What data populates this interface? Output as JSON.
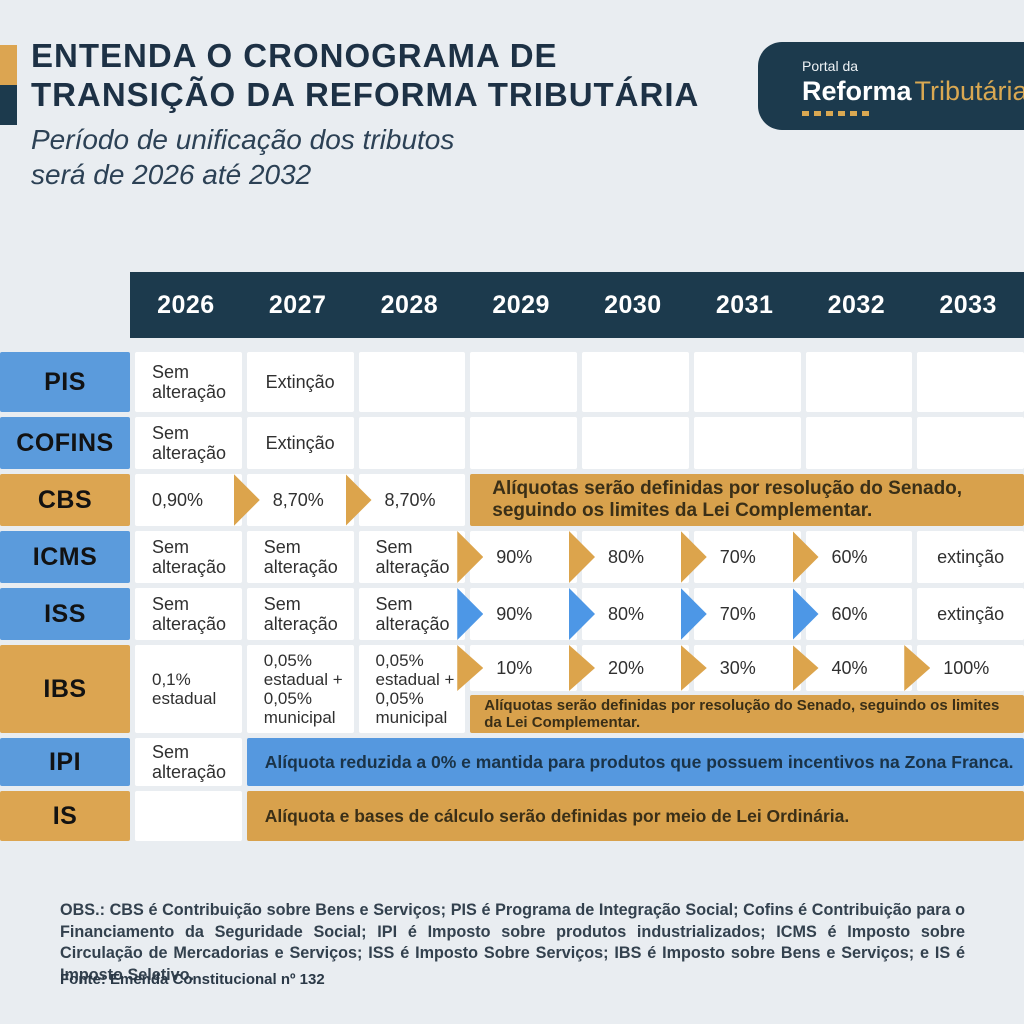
{
  "colors": {
    "background": "#E9EDF1",
    "navy": "#1C3A4D",
    "blue": "#5B9BDC",
    "blue_arrow": "#4D97E6",
    "gold": "#DCA551",
    "gold_banner": "#D8A14C"
  },
  "header": {
    "title_line1": "ENTENDA O CRONOGRAMA DE",
    "title_line2": "TRANSIÇÃO DA REFORMA TRIBUTÁRIA",
    "subtitle_line1": "Período de unificação dos tributos",
    "subtitle_line2": "será de 2026 até 2032",
    "logo": {
      "top": "Portal da",
      "brand_bold": "Reforma",
      "brand_light": "Tributária"
    }
  },
  "table": {
    "years": [
      "2026",
      "2027",
      "2028",
      "2029",
      "2030",
      "2031",
      "2032",
      "2033"
    ],
    "rows": [
      {
        "label": "PIS",
        "cells": [
          "Sem alteração",
          "Extinção",
          "",
          "",
          "",
          "",
          "",
          ""
        ]
      },
      {
        "label": "COFINS",
        "cells": [
          "Sem alteração",
          "Extinção",
          "",
          "",
          "",
          "",
          "",
          ""
        ]
      },
      {
        "label": "CBS",
        "cells": [
          "0,90%",
          "8,70%",
          "8,70%"
        ],
        "banner": {
          "line1": "Alíquotas serão definidas por resolução do Senado,",
          "line2": "seguindo os limites da Lei Complementar."
        }
      },
      {
        "label": "ICMS",
        "cells": [
          "Sem alteração",
          "Sem alteração",
          "Sem alteração",
          "90%",
          "80%",
          "70%",
          "60%",
          "extinção"
        ]
      },
      {
        "label": "ISS",
        "cells": [
          "Sem alteração",
          "Sem alteração",
          "Sem alteração",
          "90%",
          "80%",
          "70%",
          "60%",
          "extinção"
        ]
      },
      {
        "label": "IBS",
        "cells": [
          "0,1% estadual",
          "0,05% estadual + 0,05% municipal",
          "0,05% estadual + 0,05% municipal",
          "10%",
          "20%",
          "30%",
          "40%",
          "100%"
        ],
        "banner": {
          "line1": "Alíquotas serão definidas por resolução do Senado, seguindo os limites",
          "line2": "da Lei Complementar."
        }
      },
      {
        "label": "IPI",
        "cells": [
          "Sem alteração"
        ],
        "banner": {
          "text": "Alíquota reduzida a 0% e mantida para produtos que possuem incentivos na Zona Franca."
        }
      },
      {
        "label": "IS",
        "cells": [
          ""
        ],
        "banner": {
          "text": "Alíquota e bases de cálculo serão definidas por meio de Lei Ordinária."
        }
      }
    ]
  },
  "footer": {
    "obs": "OBS.: CBS é Contribuição sobre Bens e Serviços; PIS é Programa de Integração Social; Cofins é Contribuição para o Financiamento da Seguridade Social; IPI é Imposto sobre produtos industrializados; ICMS é Imposto sobre Circulação de Mercadorias e Serviços; ISS é Imposto Sobre Serviços; IBS é Imposto sobre Bens e Serviços; e IS é Imposto Seletivo.",
    "fonte": "Fonte: Emenda Constitucional nº 132"
  }
}
